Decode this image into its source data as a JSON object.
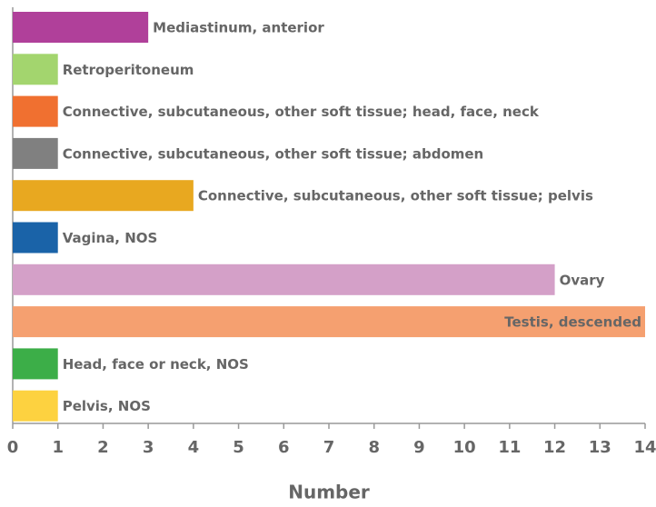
{
  "chart_data": {
    "type": "hbar",
    "categories": [
      "Mediastinum, anterior",
      "Retroperitoneum",
      "Connective, subcutaneous, other soft tissue; head, face, neck",
      "Connective, subcutaneous, other soft tissue; abdomen",
      "Connective, subcutaneous, other soft tissue; pelvis",
      "Vagina, NOS",
      "Ovary",
      "Testis, descended",
      "Head, face or neck, NOS",
      "Pelvis, NOS"
    ],
    "values": [
      3,
      1,
      1,
      1,
      4,
      1,
      12,
      14,
      1,
      1
    ],
    "colors": [
      "#b0409a",
      "#a3d56e",
      "#f07030",
      "#808080",
      "#e8a820",
      "#1a63a8",
      "#d4a0c8",
      "#f5a070",
      "#3cae48",
      "#fdd240"
    ],
    "xlabel": "Number",
    "xlim": [
      0,
      14
    ],
    "xticks": [
      0,
      1,
      2,
      3,
      4,
      5,
      6,
      7,
      8,
      9,
      10,
      11,
      12,
      13,
      14
    ]
  }
}
